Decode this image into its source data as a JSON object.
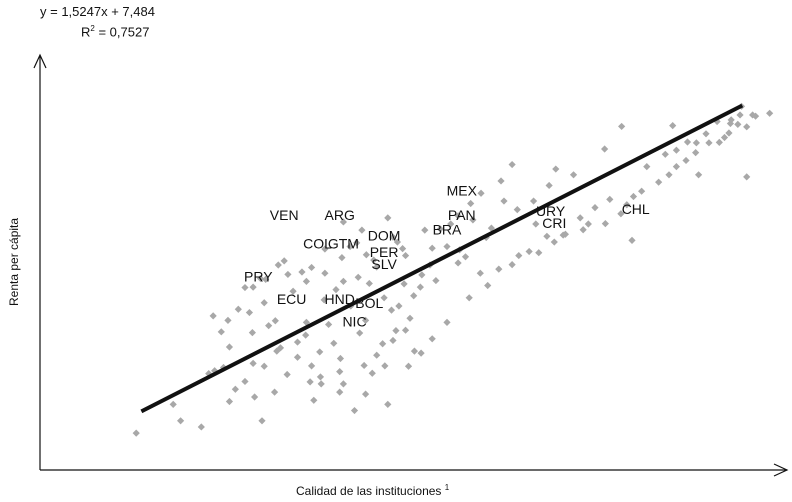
{
  "chart_data": {
    "type": "scatter",
    "title": "",
    "equation": "y = 1,5247x + 7,484",
    "r2_label": "R",
    "r2_exp": "2",
    "r2_value": " = 0,7527",
    "xlabel": "Calidad de las instituciones",
    "xlabel_sup": "1",
    "ylabel": "Renta  per cápita",
    "xlim": [
      0,
      100
    ],
    "ylim": [
      0,
      100
    ],
    "grid": false,
    "colors": {
      "points": "#a8a8a8",
      "trend": "#111111",
      "axes": "#111111"
    },
    "trendline": {
      "x": [
        13.7,
        94.9
      ],
      "y": [
        14.3,
        88.9
      ]
    },
    "labeled_points": [
      {
        "label": "VEN",
        "x": 33.0,
        "y": 61.0
      },
      {
        "label": "ARG",
        "x": 40.5,
        "y": 61.0
      },
      {
        "label": "MEX",
        "x": 57.0,
        "y": 67.0
      },
      {
        "label": "PAN",
        "x": 57.0,
        "y": 61.0
      },
      {
        "label": "URY",
        "x": 69.0,
        "y": 62.0
      },
      {
        "label": "CHL",
        "x": 80.5,
        "y": 62.5
      },
      {
        "label": "CRI",
        "x": 69.5,
        "y": 59.0
      },
      {
        "label": "COL",
        "x": 37.5,
        "y": 54.0
      },
      {
        "label": "GTM",
        "x": 41.0,
        "y": 54.0
      },
      {
        "label": "DOM",
        "x": 46.5,
        "y": 56.0
      },
      {
        "label": "BRA",
        "x": 55.0,
        "y": 57.5
      },
      {
        "label": "PER",
        "x": 46.5,
        "y": 52.0
      },
      {
        "label": "SLV",
        "x": 46.5,
        "y": 49.0
      },
      {
        "label": "PRY",
        "x": 29.5,
        "y": 46.0
      },
      {
        "label": "ECU",
        "x": 34.0,
        "y": 40.5
      },
      {
        "label": "HND",
        "x": 40.5,
        "y": 40.5
      },
      {
        "label": "BOL",
        "x": 44.5,
        "y": 39.5
      },
      {
        "label": "NIC",
        "x": 42.5,
        "y": 35.0
      }
    ],
    "points": [
      [
        13.0,
        9.0
      ],
      [
        19.0,
        12.0
      ],
      [
        21.8,
        10.5
      ],
      [
        18.0,
        16.0
      ],
      [
        25.6,
        16.7
      ],
      [
        26.4,
        19.7
      ],
      [
        27.7,
        21.6
      ],
      [
        29.0,
        17.8
      ],
      [
        31.7,
        19.0
      ],
      [
        22.8,
        23.5
      ],
      [
        23.6,
        24.2
      ],
      [
        24.8,
        25.0
      ],
      [
        28.8,
        26.0
      ],
      [
        30.3,
        25.3
      ],
      [
        33.4,
        23.3
      ],
      [
        36.7,
        25.4
      ],
      [
        37.9,
        22.7
      ],
      [
        32.5,
        29.8
      ],
      [
        34.8,
        27.5
      ],
      [
        37.8,
        28.8
      ],
      [
        40.6,
        27.2
      ],
      [
        43.8,
        25.5
      ],
      [
        44.9,
        23.6
      ],
      [
        46.6,
        25.4
      ],
      [
        49.8,
        25.3
      ],
      [
        41.0,
        21.0
      ],
      [
        44.0,
        18.5
      ],
      [
        37.0,
        17.0
      ],
      [
        38.0,
        21.0
      ],
      [
        40.5,
        19.0
      ],
      [
        24.5,
        33.7
      ],
      [
        25.4,
        36.5
      ],
      [
        25.6,
        30.0
      ],
      [
        28.3,
        38.4
      ],
      [
        28.7,
        33.5
      ],
      [
        30.9,
        35.2
      ],
      [
        31.8,
        36.4
      ],
      [
        35.9,
        32.9
      ],
      [
        34.8,
        31.2
      ],
      [
        39.7,
        30.9
      ],
      [
        43.2,
        33.4
      ],
      [
        46.3,
        30.8
      ],
      [
        47.7,
        31.6
      ],
      [
        48.1,
        34.0
      ],
      [
        49.4,
        34.1
      ],
      [
        50.6,
        29.0
      ],
      [
        53.0,
        32.0
      ],
      [
        23.4,
        37.6
      ],
      [
        26.8,
        39.2
      ],
      [
        30.3,
        40.8
      ],
      [
        34.2,
        43.6
      ],
      [
        38.4,
        41.5
      ],
      [
        41.0,
        46.0
      ],
      [
        44.5,
        45.5
      ],
      [
        46.5,
        42.0
      ],
      [
        49.2,
        45.4
      ],
      [
        51.4,
        44.6
      ],
      [
        53.5,
        46.2
      ],
      [
        56.5,
        50.5
      ],
      [
        57.5,
        52.0
      ],
      [
        59.5,
        48.0
      ],
      [
        60.5,
        45.0
      ],
      [
        62.0,
        49.0
      ],
      [
        63.8,
        50.1
      ],
      [
        64.7,
        52.3
      ],
      [
        66.1,
        53.3
      ],
      [
        67.4,
        53.0
      ],
      [
        69.5,
        55.6
      ],
      [
        70.7,
        57.3
      ],
      [
        73.4,
        58.6
      ],
      [
        74.1,
        60.0
      ],
      [
        76.4,
        60.1
      ],
      [
        78.5,
        62.5
      ],
      [
        79.3,
        64.7
      ],
      [
        80.2,
        66.7
      ],
      [
        81.3,
        68.0
      ],
      [
        83.6,
        70.2
      ],
      [
        85.0,
        72.0
      ],
      [
        86.0,
        74.0
      ],
      [
        87.3,
        75.5
      ],
      [
        88.6,
        77.4
      ],
      [
        88.7,
        79.8
      ],
      [
        90.4,
        79.8
      ],
      [
        91.8,
        79.9
      ],
      [
        92.5,
        81.1
      ],
      [
        93.1,
        82.2
      ],
      [
        94.3,
        84.3
      ],
      [
        95.5,
        83.7
      ],
      [
        96.7,
        86.3
      ],
      [
        94.6,
        86.6
      ],
      [
        93.4,
        85.4
      ],
      [
        94.8,
        88.7
      ],
      [
        96.3,
        86.6
      ],
      [
        98.6,
        87.0
      ],
      [
        95.5,
        71.5
      ],
      [
        93.3,
        84.5
      ],
      [
        89.0,
        72.0
      ],
      [
        86.0,
        78.0
      ],
      [
        85.5,
        84.0
      ],
      [
        78.6,
        83.8
      ],
      [
        76.3,
        78.3
      ],
      [
        72.1,
        72.0
      ],
      [
        69.7,
        73.4
      ],
      [
        68.8,
        69.4
      ],
      [
        66.7,
        65.6
      ],
      [
        63.8,
        74.5
      ],
      [
        62.7,
        65.6
      ],
      [
        62.3,
        70.5
      ],
      [
        59.6,
        67.5
      ],
      [
        58.2,
        65.0
      ],
      [
        56.5,
        62.0
      ],
      [
        60.3,
        56.7
      ],
      [
        56.7,
        53.7
      ],
      [
        55.0,
        54.5
      ],
      [
        54.1,
        58.8
      ],
      [
        53.0,
        54.1
      ],
      [
        52.7,
        50.0
      ],
      [
        51.6,
        47.6
      ],
      [
        49.4,
        52.3
      ],
      [
        48.3,
        55.6
      ],
      [
        47.7,
        56.8
      ],
      [
        45.1,
        51.2
      ],
      [
        44.1,
        52.5
      ],
      [
        42.8,
        55.4
      ],
      [
        41.9,
        54.5
      ],
      [
        40.8,
        51.8
      ],
      [
        38.5,
        53.9
      ],
      [
        36.7,
        49.4
      ],
      [
        35.4,
        48.3
      ],
      [
        33.5,
        47.7
      ],
      [
        32.2,
        50.0
      ],
      [
        30.5,
        46.5
      ],
      [
        29.8,
        46.7
      ],
      [
        28.8,
        44.6
      ],
      [
        27.7,
        44.5
      ],
      [
        33.0,
        51.0
      ],
      [
        36.0,
        46.0
      ],
      [
        38.5,
        48.0
      ],
      [
        40.0,
        44.0
      ],
      [
        43.0,
        47.0
      ],
      [
        45.5,
        49.5
      ],
      [
        42.0,
        40.0
      ],
      [
        48.5,
        40.0
      ],
      [
        50.5,
        42.5
      ],
      [
        41.0,
        60.5
      ],
      [
        43.5,
        58.5
      ],
      [
        47.0,
        61.5
      ],
      [
        49.0,
        54.0
      ],
      [
        52.0,
        58.5
      ],
      [
        55.5,
        60.0
      ],
      [
        58.5,
        61.0
      ],
      [
        61.0,
        59.0
      ],
      [
        64.5,
        63.5
      ],
      [
        67.0,
        60.0
      ],
      [
        68.5,
        57.0
      ],
      [
        71.0,
        57.5
      ],
      [
        73.0,
        61.5
      ],
      [
        75.0,
        64.0
      ],
      [
        77.0,
        66.0
      ],
      [
        80.0,
        56.0
      ],
      [
        82.0,
        74.0
      ],
      [
        84.5,
        77.0
      ],
      [
        87.5,
        80.0
      ],
      [
        90.0,
        82.0
      ],
      [
        91.5,
        85.0
      ],
      [
        36.0,
        36.0
      ],
      [
        39.0,
        35.5
      ],
      [
        44.0,
        36.5
      ],
      [
        47.5,
        39.0
      ],
      [
        50.0,
        37.0
      ],
      [
        32.0,
        29.0
      ],
      [
        36.5,
        21.5
      ],
      [
        42.5,
        14.5
      ],
      [
        47.0,
        16.0
      ],
      [
        30.0,
        12.0
      ],
      [
        40.5,
        24.0
      ],
      [
        45.5,
        28.0
      ],
      [
        51.5,
        28.5
      ],
      [
        55.0,
        36.0
      ],
      [
        58.0,
        42.0
      ]
    ]
  }
}
